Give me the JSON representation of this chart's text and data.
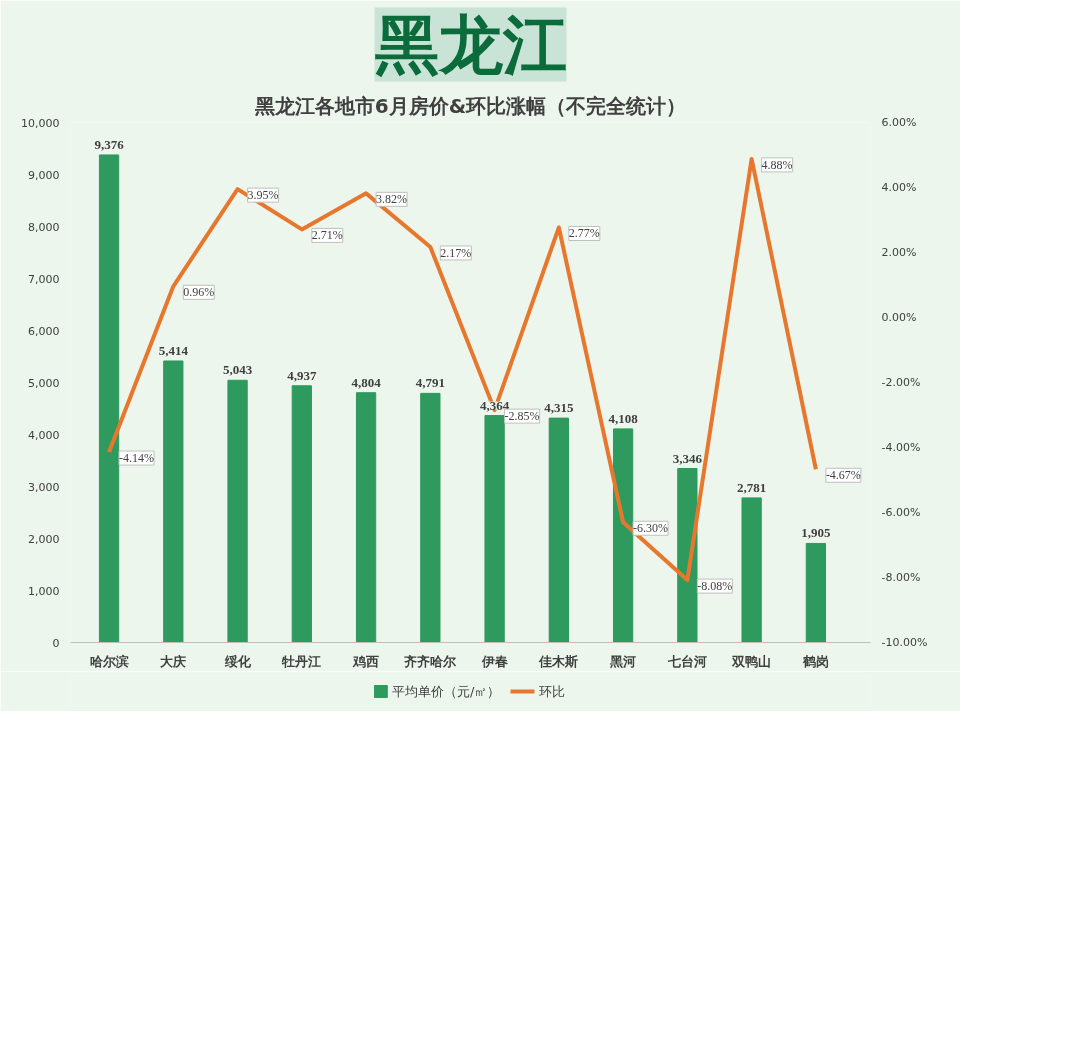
{
  "chart_data": {
    "type": "bar",
    "title": "黑龙江",
    "subtitle": "黑龙江各地市6月房价&环比涨幅（不完全统计）",
    "categories": [
      "哈尔滨",
      "大庆",
      "绥化",
      "牡丹江",
      "鸡西",
      "齐齐哈尔",
      "伊春",
      "佳木斯",
      "黑河",
      "七台河",
      "双鸭山",
      "鹤岗"
    ],
    "series": [
      {
        "name": "平均单价（元/㎡）",
        "color": "#2e9a5e",
        "values": [
          9376,
          5414,
          5043,
          4937,
          4804,
          4791,
          4364,
          4315,
          4108,
          3346,
          2781,
          1905
        ],
        "value_labels": [
          "9,376",
          "5,414",
          "5,043",
          "4,937",
          "4,804",
          "4,791",
          "4,364",
          "4,315",
          "4,108",
          "3,346",
          "2,781",
          "1,905"
        ]
      },
      {
        "name": "环比",
        "type": "line",
        "axis": "y2",
        "color": "#e8772e",
        "values": [
          -4.14,
          0.96,
          3.95,
          2.71,
          3.82,
          2.17,
          -2.85,
          2.77,
          -6.3,
          -8.08,
          4.88,
          -4.67
        ],
        "value_labels": [
          "-4.14%",
          "0.96%",
          "3.95%",
          "2.71%",
          "3.82%",
          "2.17%",
          "-2.85%",
          "2.77%",
          "-6.30%",
          "-8.08%",
          "4.88%",
          "-4.67%"
        ]
      }
    ],
    "ylim": [
      0,
      10000
    ],
    "yticks": [
      0,
      {
        "value": 1000,
        "label": "1,000"
      },
      {
        "value": 2000,
        "label": "2,000"
      },
      {
        "value": 3000,
        "label": "3,000"
      },
      {
        "value": 4000,
        "label": "4,000"
      },
      {
        "value": 5000,
        "label": "5,000"
      },
      {
        "value": 6000,
        "label": "6,000"
      },
      {
        "value": 7000,
        "label": "7,000"
      },
      {
        "value": 8000,
        "label": "8,000"
      },
      {
        "value": 9000,
        "label": "9,000"
      },
      {
        "value": 10000,
        "label": "10,000"
      }
    ],
    "y2lim": [
      -10,
      6
    ],
    "y2ticks": [
      {
        "value": -10,
        "label": "-10.00%"
      },
      {
        "value": -8,
        "label": "-8.00%"
      },
      {
        "value": -6,
        "label": "-6.00%"
      },
      {
        "value": -4,
        "label": "-4.00%"
      },
      {
        "value": -2,
        "label": "-2.00%"
      },
      {
        "value": 0,
        "label": "0.00%"
      },
      {
        "value": 2,
        "label": "2.00%"
      },
      {
        "value": 4,
        "label": "4.00%"
      },
      {
        "value": 6,
        "label": "6.00%"
      }
    ],
    "grid": false,
    "legend": "bottom",
    "marker": "none",
    "line_style": "solid"
  }
}
